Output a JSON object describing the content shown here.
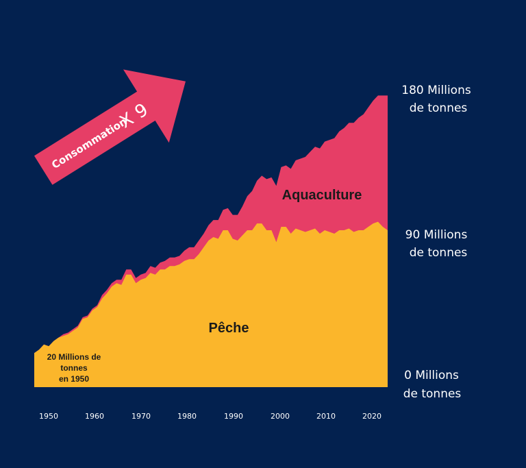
{
  "colors": {
    "background": "#03214f",
    "peche": "#fbb62b",
    "aquaculture": "#e63e66",
    "arrow": "#e63e66",
    "text_light": "#ffffff",
    "text_dark": "#1b1b1b"
  },
  "arrow": {
    "label": "Consommation",
    "multiplier": "X 9"
  },
  "chart_data": {
    "type": "area",
    "stacked": true,
    "ylim": [
      0,
      180
    ],
    "yticks": [
      {
        "value": 0,
        "line1": "0 Millions",
        "line2": "de tonnes"
      },
      {
        "value": 90,
        "line1": "90 Millions",
        "line2": "de tonnes"
      },
      {
        "value": 180,
        "line1": "180 Millions",
        "line2": "de tonnes"
      }
    ],
    "xticks": [
      "1950",
      "1960",
      "1970",
      "1980",
      "1990",
      "2000",
      "2010",
      "2020"
    ],
    "annotation": [
      "20 Millions de",
      "tonnes",
      "en 1950"
    ],
    "x": [
      1950,
      1951,
      1952,
      1953,
      1954,
      1955,
      1956,
      1957,
      1958,
      1959,
      1960,
      1961,
      1962,
      1963,
      1964,
      1965,
      1966,
      1967,
      1968,
      1969,
      1970,
      1971,
      1972,
      1973,
      1974,
      1975,
      1976,
      1977,
      1978,
      1979,
      1980,
      1981,
      1982,
      1983,
      1984,
      1985,
      1986,
      1987,
      1988,
      1989,
      1990,
      1991,
      1992,
      1993,
      1994,
      1995,
      1996,
      1997,
      1998,
      1999,
      2000,
      2001,
      2002,
      2003,
      2004,
      2005,
      2006,
      2007,
      2008,
      2009,
      2010,
      2011,
      2012,
      2013,
      2014,
      2015,
      2016,
      2017,
      2018,
      2019,
      2020,
      2021,
      2022,
      2023
    ],
    "series": [
      {
        "name": "Pêche",
        "values": [
          20,
          22,
          25,
          24,
          27,
          29,
          30,
          31,
          33,
          35,
          40,
          41,
          45,
          47,
          52,
          55,
          59,
          61,
          60,
          66,
          66,
          61,
          63,
          64,
          67,
          66,
          69,
          69,
          71,
          71,
          72,
          74,
          75,
          75,
          78,
          82,
          86,
          88,
          87,
          92,
          92,
          87,
          86,
          89,
          92,
          92,
          96,
          96,
          92,
          92,
          85,
          94,
          94,
          90,
          93,
          92,
          91,
          92,
          93,
          90,
          92,
          91,
          90,
          92,
          92,
          93,
          91,
          92,
          92,
          94,
          96,
          97,
          94,
          92
        ],
        "aqua": [
          0,
          0,
          0,
          0,
          0,
          0,
          1,
          1,
          1,
          1,
          1,
          1,
          1,
          1,
          2,
          2,
          2,
          2,
          3,
          3,
          3,
          3,
          3,
          3,
          4,
          4,
          4,
          5,
          5,
          5,
          5,
          6,
          7,
          7,
          8,
          8,
          9,
          10,
          11,
          12,
          13,
          14,
          15,
          17,
          20,
          23,
          25,
          28,
          30,
          31,
          33,
          35,
          36,
          38,
          40,
          42,
          44,
          46,
          48,
          50,
          52,
          54,
          56,
          58,
          60,
          62,
          64,
          66,
          68,
          70,
          72,
          74,
          77,
          79
        ]
      }
    ]
  }
}
